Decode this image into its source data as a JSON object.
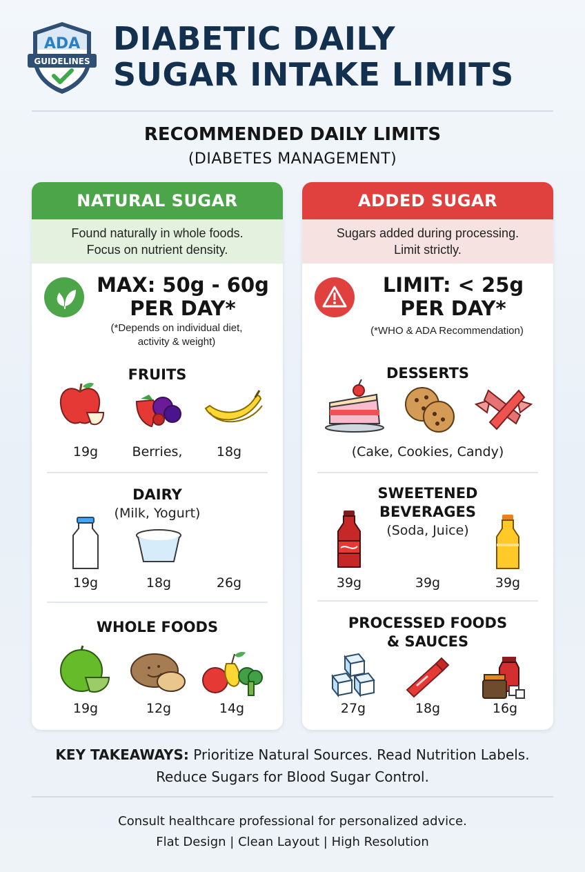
{
  "header": {
    "badge_top": "ADA",
    "badge_ribbon": "GUIDELINES",
    "title_line1": "DIABETIC DAILY",
    "title_line2": "SUGAR INTAKE LIMITS"
  },
  "subheading": {
    "line1": "RECOMMENDED DAILY LIMITS",
    "line2": "(DIABETES MANAGEMENT)"
  },
  "natural": {
    "header": "NATURAL SUGAR",
    "desc_line1": "Found naturally in whole foods.",
    "desc_line2": "Focus on nutrient density.",
    "icon": "leaf-icon",
    "limit_line1": "MAX: 50g - 60g",
    "limit_line2": "PER DAY*",
    "note_line1": "(*Depends on individual diet,",
    "note_line2": "activity & weight)",
    "sections": {
      "fruits": {
        "title": "FRUITS",
        "items": [
          {
            "icon": "apple-icon",
            "value": "19g"
          },
          {
            "icon": "berries-icon",
            "value": "Berries,"
          },
          {
            "icon": "banana-icon",
            "value": "18g"
          }
        ]
      },
      "dairy": {
        "title": "DAIRY",
        "subtitle": "(Milk, Yogurt)",
        "items": [
          {
            "icon": "milk-bottle-icon",
            "value": "19g"
          },
          {
            "icon": "yogurt-cup-icon",
            "value": "18g"
          },
          {
            "icon": "",
            "value": "26g"
          }
        ]
      },
      "whole_foods": {
        "title": "WHOLE FOODS",
        "items": [
          {
            "icon": "melon-icon",
            "value": "19g"
          },
          {
            "icon": "potato-icon",
            "value": "12g"
          },
          {
            "icon": "vegetables-icon",
            "value": "14g"
          }
        ]
      }
    }
  },
  "added": {
    "header": "ADDED SUGAR",
    "desc_line1": "Sugars added during processing.",
    "desc_line2": "Limit strictly.",
    "icon": "warning-icon",
    "limit_line1": "LIMIT: < 25g",
    "limit_line2": "PER DAY*",
    "note_line1": "(*WHO & ADA Recommendation)",
    "sections": {
      "desserts": {
        "title": "DESSERTS",
        "note": "(Cake, Cookies, Candy)",
        "items": [
          {
            "icon": "cake-icon"
          },
          {
            "icon": "cookies-icon"
          },
          {
            "icon": "candy-icon"
          }
        ]
      },
      "beverages": {
        "title_line1": "SWEETENED",
        "title_line2": "BEVERAGES",
        "subtitle": "(Soda, Juice)",
        "items": [
          {
            "icon": "soda-bottle-icon",
            "value": "39g"
          },
          {
            "icon": "",
            "value": "39g"
          },
          {
            "icon": "juice-bottle-icon",
            "value": "39g"
          }
        ]
      },
      "processed": {
        "title_line1": "PROCESSED FOODS",
        "title_line2": "& SAUCES",
        "items": [
          {
            "icon": "sugar-cubes-icon",
            "value": "27g"
          },
          {
            "icon": "ketchup-bottle-icon",
            "value": "18g"
          },
          {
            "icon": "jars-icon",
            "value": "16g"
          }
        ]
      }
    }
  },
  "takeaway": {
    "label": "KEY TAKEAWAYS:",
    "text_line1": " Prioritize Natural Sources. Read Nutrition Labels.",
    "text_line2": "Reduce Sugars for Blood Sugar Control."
  },
  "footer": {
    "line1": "Consult healthcare professional for personalized advice.",
    "line2": "Flat Design | Clean Layout | High Resolution"
  },
  "colors": {
    "title": "#14304f",
    "natural_green": "#4ca548",
    "added_red": "#e0403e",
    "natural_tint": "#e4f1df",
    "added_tint": "#f6e2e1"
  }
}
